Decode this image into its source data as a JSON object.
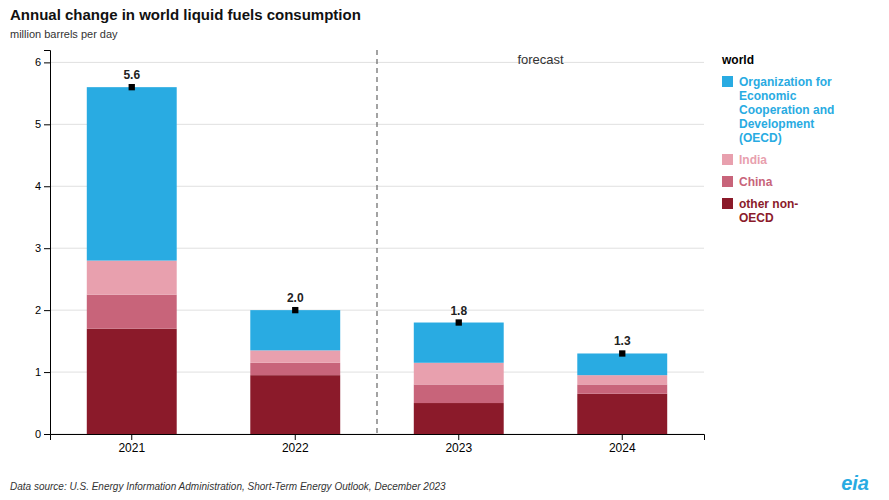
{
  "chart_data": {
    "type": "bar",
    "stacked": true,
    "title": "Annual change in world liquid fuels consumption",
    "y_label": "million barrels per day",
    "categories": [
      "2021",
      "2022",
      "2023",
      "2024"
    ],
    "series": [
      {
        "name": "other non-\nOECD",
        "color": "#8B1A2A",
        "values": [
          1.7,
          0.95,
          0.5,
          0.65
        ]
      },
      {
        "name": "China",
        "color": "#C8647A",
        "values": [
          0.55,
          0.2,
          0.3,
          0.15
        ]
      },
      {
        "name": "India",
        "color": "#E8A0AE",
        "values": [
          0.55,
          0.2,
          0.35,
          0.15
        ]
      },
      {
        "name": "Organization for\nEconomic\nCooperation and\nDevelopment\n(OECD)",
        "color": "#29ABE2",
        "values": [
          2.8,
          0.65,
          0.65,
          0.35
        ]
      },
      {
        "name": "world",
        "type": "scatter",
        "marker": "square",
        "color": "#000000",
        "data_labels": true,
        "values": [
          5.6,
          2.0,
          1.8,
          1.3
        ],
        "value_labels": [
          "5.6",
          "2.0",
          "1.8",
          "1.3"
        ]
      }
    ],
    "ylim": [
      0,
      6.2
    ],
    "yticks": [
      0,
      1,
      2,
      3,
      4,
      5,
      6
    ],
    "grid": true,
    "legend": "right",
    "annotations": [
      {
        "text": "forecast",
        "from_category": "2023"
      }
    ],
    "source": "Data source: U.S. Energy Information Administration, Short-Term Energy Outlook, December 2023",
    "logo": {
      "text": "eia",
      "color": "#29ABE2"
    }
  }
}
